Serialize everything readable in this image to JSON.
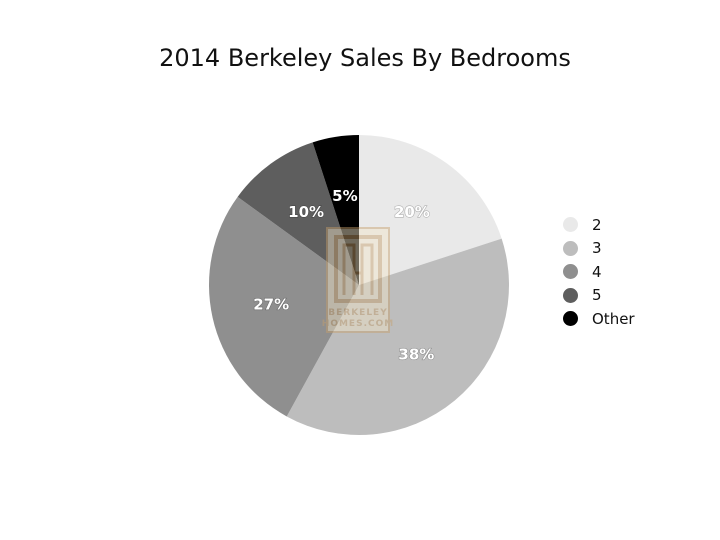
{
  "chart_data": {
    "type": "pie",
    "title": "2014 Berkeley Sales By Bedrooms",
    "categories": [
      "2",
      "3",
      "4",
      "5",
      "Other"
    ],
    "values": [
      20,
      38,
      27,
      10,
      5
    ],
    "value_labels": [
      "20%",
      "38%",
      "27%",
      "10%",
      "5%"
    ],
    "colors": [
      "#e9e9e9",
      "#bdbdbd",
      "#8f8f8f",
      "#5e5e5e",
      "#000000"
    ],
    "start_angle": "12 o'clock",
    "direction": "clockwise",
    "legend": "right"
  },
  "watermark": {
    "text_line1": "BERKELEY",
    "text_line2": "HOMES.COM",
    "color": "#c7a06a"
  }
}
